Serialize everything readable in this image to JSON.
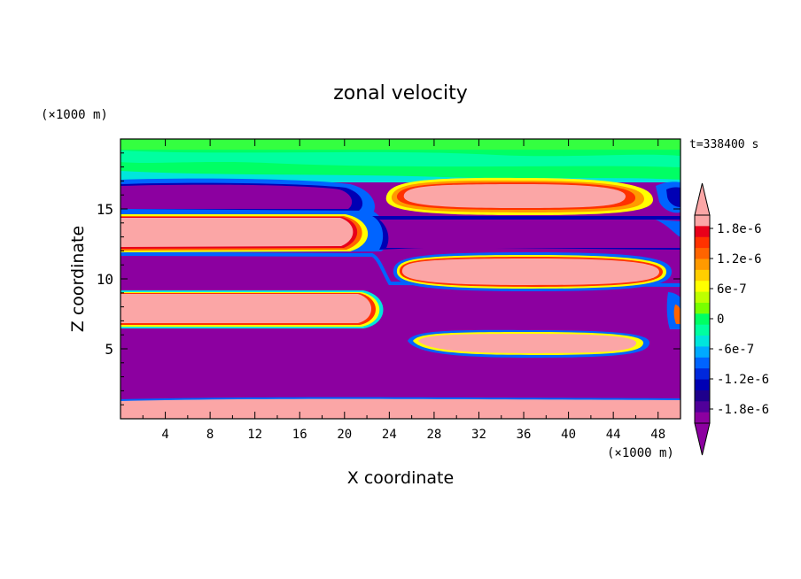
{
  "chart_data": {
    "type": "heatmap",
    "title": "zonal velocity",
    "xlabel": "X coordinate",
    "ylabel": "Z coordinate",
    "x_unit": "(×1000 m)",
    "y_unit": "(×1000 m)",
    "time_label": "t=338400 s",
    "xlim": [
      0,
      50
    ],
    "ylim": [
      0,
      20
    ],
    "xticks": [
      4,
      8,
      12,
      16,
      20,
      24,
      28,
      32,
      36,
      40,
      44,
      48
    ],
    "yticks": [
      5,
      10,
      15
    ],
    "colorbar": {
      "labels": [
        "1.8e-6",
        "1.2e-6",
        "6e-7",
        "0",
        "-6e-7",
        "-1.2e-6",
        "-1.8e-6"
      ],
      "colors_top_to_bottom": [
        "#fba6a6",
        "#e8001a",
        "#ff3200",
        "#ff6400",
        "#ff9a00",
        "#ffce00",
        "#ffff00",
        "#beff00",
        "#78ff00",
        "#00ff64",
        "#00ffa0",
        "#00e6dc",
        "#00aaff",
        "#0064ff",
        "#0028dc",
        "#0000b4",
        "#1e008c",
        "#50009a",
        "#8c00a0"
      ],
      "over_color": "#fba6a6",
      "under_color": "#8c00a0"
    },
    "regions": [
      {
        "sign": "positive",
        "x": [
          0,
          50
        ],
        "z": [
          0.3,
          1.5
        ]
      },
      {
        "sign": "negative",
        "x": [
          0,
          50
        ],
        "z": [
          1.6,
          6.3
        ]
      },
      {
        "sign": "positive",
        "x": [
          0,
          22
        ],
        "z": [
          6.6,
          8.9
        ]
      },
      {
        "sign": "negative",
        "x": [
          0,
          50
        ],
        "z": [
          9.0,
          12.2
        ]
      },
      {
        "sign": "positive",
        "x": [
          0,
          21.5
        ],
        "z": [
          12.4,
          14.4
        ]
      },
      {
        "sign": "positive",
        "x": [
          24.5,
          48
        ],
        "z": [
          4.6,
          6.1
        ]
      },
      {
        "sign": "positive",
        "x": [
          24.5,
          49
        ],
        "z": [
          9.2,
          11.7
        ]
      },
      {
        "sign": "negative",
        "x": [
          22,
          50
        ],
        "z": [
          12.0,
          14.9
        ]
      },
      {
        "sign": "negative",
        "x": [
          0,
          21
        ],
        "z": [
          14.7,
          16.6
        ]
      },
      {
        "sign": "positive",
        "x": [
          25,
          46
        ],
        "z": [
          14.8,
          16.8
        ]
      }
    ]
  }
}
